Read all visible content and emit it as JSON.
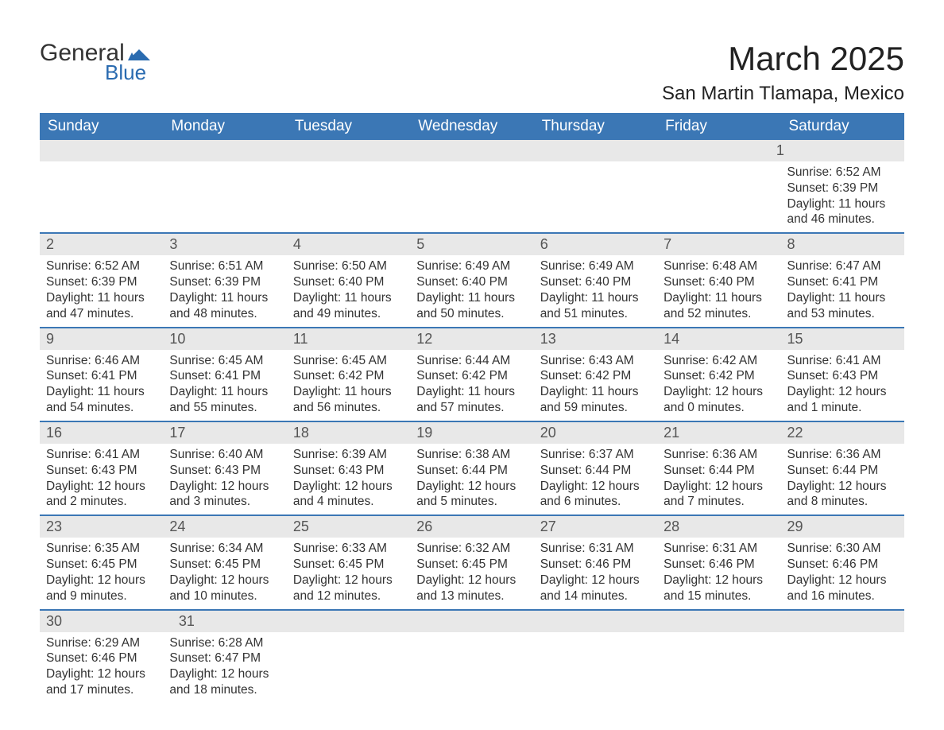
{
  "logo": {
    "text1": "General",
    "text2": "Blue",
    "text1_color": "#333333",
    "text2_color": "#2a6bb0",
    "icon_color": "#2a6bb0"
  },
  "title": {
    "month": "March 2025",
    "location": "San Martin Tlamapa, Mexico",
    "month_fontsize": 42,
    "location_fontsize": 24,
    "color": "#222222"
  },
  "colors": {
    "header_bg": "#3b77b5",
    "header_text": "#ffffff",
    "strip_bg": "#e8e8e8",
    "row_border": "#3b77b5",
    "body_text": "#333333",
    "daynum_text": "#555555",
    "page_bg": "#ffffff"
  },
  "typography": {
    "font_family": "Arial",
    "weekday_fontsize": 19,
    "daynum_fontsize": 18,
    "body_fontsize": 15.5
  },
  "weekdays": [
    "Sunday",
    "Monday",
    "Tuesday",
    "Wednesday",
    "Thursday",
    "Friday",
    "Saturday"
  ],
  "weeks": [
    [
      {
        "day": "",
        "sunrise": "",
        "sunset": "",
        "daylight": ""
      },
      {
        "day": "",
        "sunrise": "",
        "sunset": "",
        "daylight": ""
      },
      {
        "day": "",
        "sunrise": "",
        "sunset": "",
        "daylight": ""
      },
      {
        "day": "",
        "sunrise": "",
        "sunset": "",
        "daylight": ""
      },
      {
        "day": "",
        "sunrise": "",
        "sunset": "",
        "daylight": ""
      },
      {
        "day": "",
        "sunrise": "",
        "sunset": "",
        "daylight": ""
      },
      {
        "day": "1",
        "sunrise": "Sunrise: 6:52 AM",
        "sunset": "Sunset: 6:39 PM",
        "daylight": "Daylight: 11 hours and 46 minutes."
      }
    ],
    [
      {
        "day": "2",
        "sunrise": "Sunrise: 6:52 AM",
        "sunset": "Sunset: 6:39 PM",
        "daylight": "Daylight: 11 hours and 47 minutes."
      },
      {
        "day": "3",
        "sunrise": "Sunrise: 6:51 AM",
        "sunset": "Sunset: 6:39 PM",
        "daylight": "Daylight: 11 hours and 48 minutes."
      },
      {
        "day": "4",
        "sunrise": "Sunrise: 6:50 AM",
        "sunset": "Sunset: 6:40 PM",
        "daylight": "Daylight: 11 hours and 49 minutes."
      },
      {
        "day": "5",
        "sunrise": "Sunrise: 6:49 AM",
        "sunset": "Sunset: 6:40 PM",
        "daylight": "Daylight: 11 hours and 50 minutes."
      },
      {
        "day": "6",
        "sunrise": "Sunrise: 6:49 AM",
        "sunset": "Sunset: 6:40 PM",
        "daylight": "Daylight: 11 hours and 51 minutes."
      },
      {
        "day": "7",
        "sunrise": "Sunrise: 6:48 AM",
        "sunset": "Sunset: 6:40 PM",
        "daylight": "Daylight: 11 hours and 52 minutes."
      },
      {
        "day": "8",
        "sunrise": "Sunrise: 6:47 AM",
        "sunset": "Sunset: 6:41 PM",
        "daylight": "Daylight: 11 hours and 53 minutes."
      }
    ],
    [
      {
        "day": "9",
        "sunrise": "Sunrise: 6:46 AM",
        "sunset": "Sunset: 6:41 PM",
        "daylight": "Daylight: 11 hours and 54 minutes."
      },
      {
        "day": "10",
        "sunrise": "Sunrise: 6:45 AM",
        "sunset": "Sunset: 6:41 PM",
        "daylight": "Daylight: 11 hours and 55 minutes."
      },
      {
        "day": "11",
        "sunrise": "Sunrise: 6:45 AM",
        "sunset": "Sunset: 6:42 PM",
        "daylight": "Daylight: 11 hours and 56 minutes."
      },
      {
        "day": "12",
        "sunrise": "Sunrise: 6:44 AM",
        "sunset": "Sunset: 6:42 PM",
        "daylight": "Daylight: 11 hours and 57 minutes."
      },
      {
        "day": "13",
        "sunrise": "Sunrise: 6:43 AM",
        "sunset": "Sunset: 6:42 PM",
        "daylight": "Daylight: 11 hours and 59 minutes."
      },
      {
        "day": "14",
        "sunrise": "Sunrise: 6:42 AM",
        "sunset": "Sunset: 6:42 PM",
        "daylight": "Daylight: 12 hours and 0 minutes."
      },
      {
        "day": "15",
        "sunrise": "Sunrise: 6:41 AM",
        "sunset": "Sunset: 6:43 PM",
        "daylight": "Daylight: 12 hours and 1 minute."
      }
    ],
    [
      {
        "day": "16",
        "sunrise": "Sunrise: 6:41 AM",
        "sunset": "Sunset: 6:43 PM",
        "daylight": "Daylight: 12 hours and 2 minutes."
      },
      {
        "day": "17",
        "sunrise": "Sunrise: 6:40 AM",
        "sunset": "Sunset: 6:43 PM",
        "daylight": "Daylight: 12 hours and 3 minutes."
      },
      {
        "day": "18",
        "sunrise": "Sunrise: 6:39 AM",
        "sunset": "Sunset: 6:43 PM",
        "daylight": "Daylight: 12 hours and 4 minutes."
      },
      {
        "day": "19",
        "sunrise": "Sunrise: 6:38 AM",
        "sunset": "Sunset: 6:44 PM",
        "daylight": "Daylight: 12 hours and 5 minutes."
      },
      {
        "day": "20",
        "sunrise": "Sunrise: 6:37 AM",
        "sunset": "Sunset: 6:44 PM",
        "daylight": "Daylight: 12 hours and 6 minutes."
      },
      {
        "day": "21",
        "sunrise": "Sunrise: 6:36 AM",
        "sunset": "Sunset: 6:44 PM",
        "daylight": "Daylight: 12 hours and 7 minutes."
      },
      {
        "day": "22",
        "sunrise": "Sunrise: 6:36 AM",
        "sunset": "Sunset: 6:44 PM",
        "daylight": "Daylight: 12 hours and 8 minutes."
      }
    ],
    [
      {
        "day": "23",
        "sunrise": "Sunrise: 6:35 AM",
        "sunset": "Sunset: 6:45 PM",
        "daylight": "Daylight: 12 hours and 9 minutes."
      },
      {
        "day": "24",
        "sunrise": "Sunrise: 6:34 AM",
        "sunset": "Sunset: 6:45 PM",
        "daylight": "Daylight: 12 hours and 10 minutes."
      },
      {
        "day": "25",
        "sunrise": "Sunrise: 6:33 AM",
        "sunset": "Sunset: 6:45 PM",
        "daylight": "Daylight: 12 hours and 12 minutes."
      },
      {
        "day": "26",
        "sunrise": "Sunrise: 6:32 AM",
        "sunset": "Sunset: 6:45 PM",
        "daylight": "Daylight: 12 hours and 13 minutes."
      },
      {
        "day": "27",
        "sunrise": "Sunrise: 6:31 AM",
        "sunset": "Sunset: 6:46 PM",
        "daylight": "Daylight: 12 hours and 14 minutes."
      },
      {
        "day": "28",
        "sunrise": "Sunrise: 6:31 AM",
        "sunset": "Sunset: 6:46 PM",
        "daylight": "Daylight: 12 hours and 15 minutes."
      },
      {
        "day": "29",
        "sunrise": "Sunrise: 6:30 AM",
        "sunset": "Sunset: 6:46 PM",
        "daylight": "Daylight: 12 hours and 16 minutes."
      }
    ],
    [
      {
        "day": "30",
        "sunrise": "Sunrise: 6:29 AM",
        "sunset": "Sunset: 6:46 PM",
        "daylight": "Daylight: 12 hours and 17 minutes."
      },
      {
        "day": "31",
        "sunrise": "Sunrise: 6:28 AM",
        "sunset": "Sunset: 6:47 PM",
        "daylight": "Daylight: 12 hours and 18 minutes."
      },
      {
        "day": "",
        "sunrise": "",
        "sunset": "",
        "daylight": ""
      },
      {
        "day": "",
        "sunrise": "",
        "sunset": "",
        "daylight": ""
      },
      {
        "day": "",
        "sunrise": "",
        "sunset": "",
        "daylight": ""
      },
      {
        "day": "",
        "sunrise": "",
        "sunset": "",
        "daylight": ""
      },
      {
        "day": "",
        "sunrise": "",
        "sunset": "",
        "daylight": ""
      }
    ]
  ]
}
